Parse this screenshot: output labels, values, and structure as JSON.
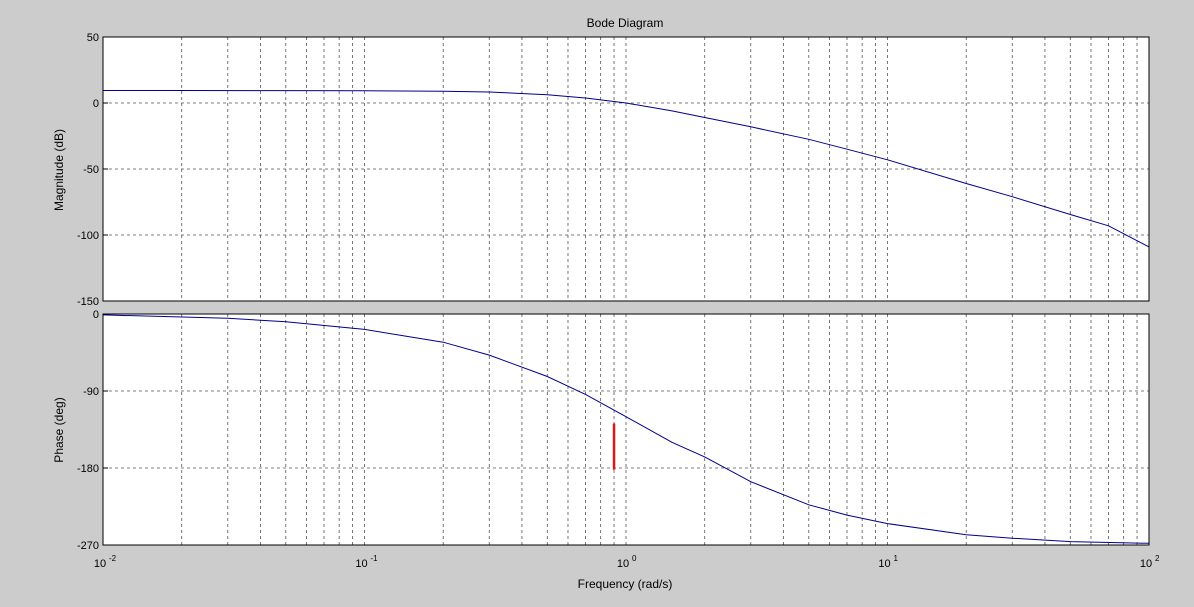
{
  "chart_data": {
    "type": "line",
    "title": "Bode Diagram",
    "xlabel": "Frequency  (rad/s)",
    "x_scale": "log",
    "xlim": [
      0.01,
      100
    ],
    "x_tick_labels": [
      "10-2",
      "10-1",
      "100",
      "101",
      "102"
    ],
    "grid": true,
    "colors": {
      "series": "#00008b",
      "marker": "#d61a1a",
      "axes_bg": "#ffffff",
      "figure_bg": "#cccccc",
      "grid": "#555555"
    },
    "panels": [
      {
        "name": "magnitude",
        "ylabel": "Magnitude (dB)",
        "ylim": [
          -150,
          50
        ],
        "y_ticks": [
          50,
          0,
          -50,
          -100,
          -150
        ],
        "y_tick_labels": [
          "50",
          "0",
          "-50",
          "-100",
          "-150"
        ],
        "series": [
          {
            "x": [
              0.01,
              0.02,
              0.05,
              0.1,
              0.2,
              0.3,
              0.5,
              0.7,
              1,
              1.5,
              2,
              3,
              5,
              7,
              10,
              20,
              30,
              50,
              70,
              100
            ],
            "y": [
              9.5,
              9.5,
              9.4,
              9.3,
              8.9,
              8.3,
              6.3,
              3.8,
              0,
              -6,
              -11,
              -18,
              -27.5,
              -35,
              -43,
              -61,
              -71,
              -84.5,
              -93,
              -109
            ]
          }
        ]
      },
      {
        "name": "phase",
        "ylabel": "Phase (deg)",
        "ylim": [
          -270,
          0
        ],
        "y_ticks": [
          0,
          -90,
          -180,
          -270
        ],
        "y_tick_labels": [
          "0",
          "-90",
          "-180",
          "-270"
        ],
        "series": [
          {
            "x": [
              0.01,
              0.03,
              0.05,
              0.1,
              0.2,
              0.3,
              0.5,
              0.7,
              1,
              1.5,
              2,
              3,
              5,
              7,
              10,
              20,
              30,
              50,
              100
            ],
            "y": [
              -1,
              -5,
              -9,
              -18,
              -33,
              -48,
              -73,
              -94,
              -120,
              -150,
              -167,
              -196,
              -223,
              -235,
              -245,
              -258,
              -262,
              -266,
              -268
            ]
          }
        ],
        "marker": {
          "x": 0.9,
          "y_from": -128,
          "y_to": -182
        }
      }
    ]
  }
}
